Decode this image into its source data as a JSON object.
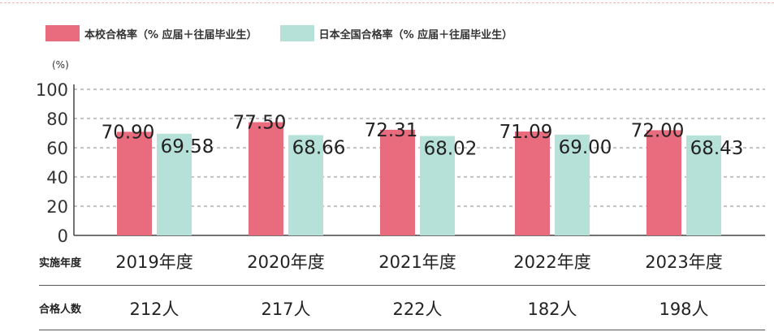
{
  "legend": {
    "series1": "本校合格率（%  应届＋往届毕业生）",
    "series2": "日本全国合格率（%  应届＋往届毕业生）"
  },
  "colors": {
    "series1": "#e96b7e",
    "series2": "#b6e1d8",
    "grid": "#888888",
    "axis": "#444444"
  },
  "chart_data": {
    "type": "bar",
    "unit_label": "(%)",
    "categories": [
      "2019年度",
      "2020年度",
      "2021年度",
      "2022年度",
      "2023年度"
    ],
    "series": [
      {
        "name": "本校合格率（%  应届＋往届毕业生）",
        "values": [
          70.9,
          77.5,
          72.31,
          71.09,
          72.0
        ],
        "labels": [
          "70.90",
          "77.50",
          "72.31",
          "71.09",
          "72.00"
        ]
      },
      {
        "name": "日本全国合格率（%  应届＋往届毕业生）",
        "values": [
          69.58,
          68.66,
          68.02,
          69.0,
          68.43
        ],
        "labels": [
          "69.58",
          "68.66",
          "68.02",
          "69.00",
          "68.43"
        ]
      }
    ],
    "ylim": [
      0,
      100
    ],
    "yticks": [
      "0",
      "20",
      "40",
      "60",
      "80",
      "100"
    ],
    "grid": true,
    "legend_position": "top-left"
  },
  "table": {
    "year_row_label": "实施年度",
    "count_row_label": "合格人数",
    "years": [
      "2019年度",
      "2020年度",
      "2021年度",
      "2022年度",
      "2023年度"
    ],
    "counts": [
      "212人",
      "217人",
      "222人",
      "182人",
      "198人"
    ]
  }
}
